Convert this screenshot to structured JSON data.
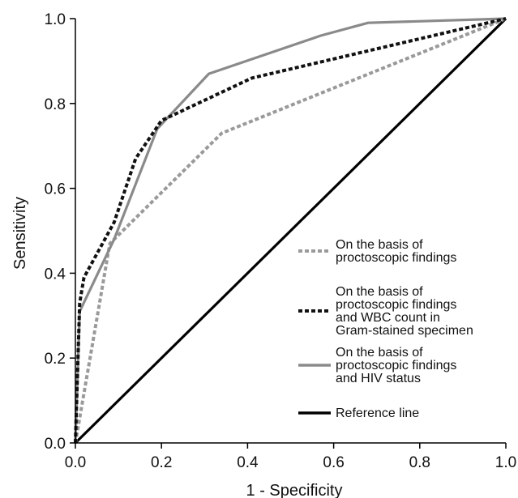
{
  "chart_data": {
    "type": "line",
    "title": "",
    "xlabel": "1 - Specificity",
    "ylabel": "Sensitivity",
    "xlim": [
      0,
      1
    ],
    "ylim": [
      0,
      1
    ],
    "xticks": [
      "0.0",
      "0.2",
      "0.4",
      "0.6",
      "0.8",
      "1.0"
    ],
    "yticks": [
      "0.0",
      "0.2",
      "0.4",
      "0.6",
      "0.8",
      "1.0"
    ],
    "grid": false,
    "legend_position": "right",
    "series": [
      {
        "name": "On the basis of proctoscopic findings",
        "legend_lines": [
          "On the basis of",
          "proctoscopic findings"
        ],
        "color": "#9a9a9a",
        "style": "dotted",
        "x": [
          0.0,
          0.08,
          0.34,
          1.0
        ],
        "y": [
          0.0,
          0.47,
          0.73,
          1.0
        ]
      },
      {
        "name": "On the basis of proctoscopic findings and WBC count in Gram-stained specimen",
        "legend_lines": [
          "On the basis of",
          "proctoscopic findings",
          "and WBC count in",
          "Gram-stained specimen"
        ],
        "color": "#111111",
        "style": "dotted",
        "x": [
          0.0,
          0.01,
          0.02,
          0.09,
          0.14,
          0.2,
          0.41,
          1.0
        ],
        "y": [
          0.0,
          0.33,
          0.39,
          0.52,
          0.67,
          0.76,
          0.86,
          1.0
        ]
      },
      {
        "name": "On the basis of proctoscopic findings and HIV status",
        "legend_lines": [
          "On the basis of",
          "proctoscopic findings",
          "and HIV status"
        ],
        "color": "#8a8a8a",
        "style": "solid",
        "x": [
          0.0,
          0.01,
          0.09,
          0.19,
          0.31,
          0.57,
          0.68,
          1.0
        ],
        "y": [
          0.0,
          0.31,
          0.48,
          0.74,
          0.87,
          0.96,
          0.99,
          1.0
        ]
      },
      {
        "name": "Reference line",
        "legend_lines": [
          "Reference line"
        ],
        "color": "#000000",
        "style": "solid",
        "x": [
          0.0,
          1.0
        ],
        "y": [
          0.0,
          1.0
        ]
      }
    ]
  }
}
